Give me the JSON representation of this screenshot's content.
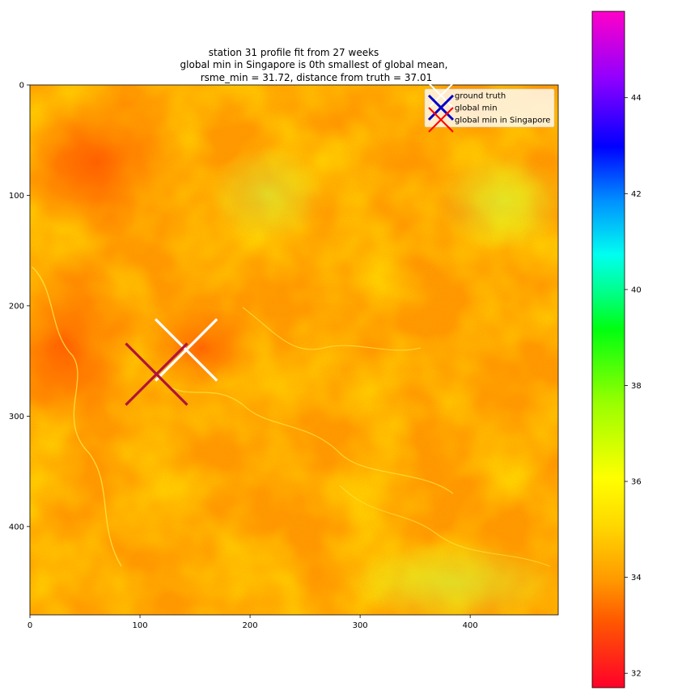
{
  "chart_data": {
    "type": "heatmap",
    "title_lines": [
      "station 31 profile fit from 27 weeks",
      "global min in Singapore is 0th smallest of global mean,",
      "rsme_min = 31.72, distance from truth = 37.01"
    ],
    "xlabel": "",
    "ylabel": "",
    "xlim": [
      0,
      480
    ],
    "ylim": [
      480,
      0
    ],
    "x_ticks": [
      0,
      100,
      200,
      300,
      400
    ],
    "y_ticks": [
      0,
      100,
      200,
      300,
      400
    ],
    "colorbar": {
      "range": [
        31.7,
        45.8
      ],
      "ticks": [
        32,
        34,
        36,
        38,
        40,
        42,
        44
      ],
      "colormap": "gist_rainbow_r"
    },
    "markers": [
      {
        "name": "ground truth",
        "x": 142,
        "y": 240,
        "color": "#ffffff"
      },
      {
        "name": "global min in Singapore",
        "x": 115,
        "y": 262,
        "color": "#ff0000"
      },
      {
        "name": "global min",
        "x": 115,
        "y": 262,
        "color": "#0000ff"
      }
    ],
    "legend": {
      "placement": "top-right",
      "entries": [
        {
          "label": "ground truth",
          "color": "#ffffff"
        },
        {
          "label": "global min",
          "color": "#0000cc"
        },
        {
          "label": "global min in Singapore",
          "color": "#ff0000"
        }
      ]
    }
  }
}
